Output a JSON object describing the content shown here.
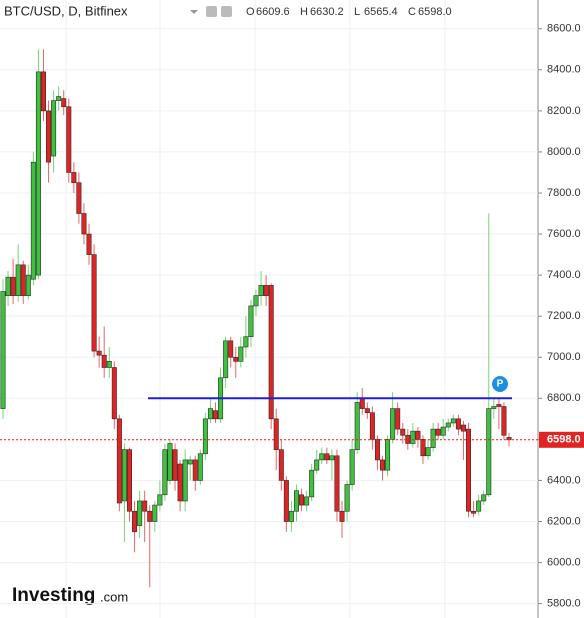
{
  "chart_data": {
    "type": "candlestick",
    "title": "BTC/USD, D, Bitfinex",
    "ohlc_labels": [
      "O",
      "H",
      "L",
      "C"
    ],
    "open": [
      6750,
      7300,
      7390,
      7300,
      7450,
      7300,
      7380,
      7400,
      8390,
      8200,
      7980,
      8250,
      8260,
      8220,
      7900,
      7850,
      7700,
      7600,
      7500,
      7030,
      7010,
      6950,
      6950,
      6700,
      6300,
      6550,
      6250,
      6180,
      6300,
      6250,
      6200,
      6280,
      6330,
      6400,
      6550,
      6480,
      6300,
      6480,
      6500,
      6400,
      6530,
      6700,
      6740,
      6700,
      6900,
      7080,
      7000,
      6980,
      7050,
      7100,
      7250,
      7300,
      7350,
      7350,
      6700,
      6550,
      6400,
      6200,
      6250,
      6330,
      6280,
      6320,
      6450,
      6500,
      6530,
      6500,
      6520,
      6250,
      6250,
      6380,
      6550,
      6800,
      6750,
      6730,
      6600,
      6500,
      6450,
      6600,
      6750,
      6650,
      6620,
      6580,
      6640,
      6600,
      6520,
      6560,
      6650,
      6620,
      6660,
      6680,
      6700,
      6670,
      6650,
      6250,
      6250,
      6300,
      6330,
      6750,
      6770,
      6760,
      6609.6
    ],
    "high": [
      7380,
      7420,
      7480,
      7550,
      7470,
      7450,
      8000,
      8500,
      8500,
      8250,
      8300,
      8320,
      8300,
      8260,
      7950,
      7900,
      7750,
      7650,
      7550,
      7100,
      7150,
      7050,
      6980,
      6720,
      6580,
      6560,
      6300,
      6350,
      6350,
      6280,
      6300,
      6400,
      6580,
      6600,
      6580,
      6500,
      6550,
      6520,
      6520,
      6550,
      6730,
      6800,
      6780,
      6950,
      7100,
      7100,
      7050,
      7100,
      7200,
      7280,
      7330,
      7420,
      7400,
      7360,
      6750,
      6600,
      6420,
      6300,
      6380,
      6360,
      6350,
      6480,
      6550,
      6560,
      6560,
      6550,
      6550,
      6300,
      6400,
      6600,
      6830,
      6850,
      6780,
      6760,
      6620,
      6520,
      6620,
      6830,
      6780,
      6680,
      6650,
      6680,
      6660,
      6620,
      6600,
      6680,
      6680,
      6700,
      6700,
      6720,
      6720,
      6690,
      6680,
      6300,
      6330,
      6350,
      7700,
      6800,
      6800,
      6780,
      6630.2
    ],
    "low": [
      6700,
      7250,
      7260,
      7270,
      7260,
      7280,
      7350,
      7380,
      8150,
      7850,
      7900,
      8200,
      8180,
      7850,
      7800,
      7650,
      7550,
      7450,
      7000,
      6950,
      6900,
      6900,
      6650,
      6250,
      6100,
      6200,
      6050,
      6120,
      6100,
      5880,
      6150,
      6250,
      6300,
      6380,
      6350,
      6250,
      6250,
      6400,
      6350,
      6380,
      6500,
      6680,
      6680,
      6680,
      6850,
      6950,
      6900,
      6950,
      7000,
      7050,
      7200,
      7250,
      7250,
      6650,
      6450,
      6350,
      6150,
      6150,
      6200,
      6250,
      6250,
      6300,
      6430,
      6480,
      6480,
      6400,
      6200,
      6120,
      6200,
      6350,
      6530,
      6720,
      6700,
      6550,
      6450,
      6400,
      6420,
      6580,
      6620,
      6580,
      6550,
      6560,
      6560,
      6480,
      6500,
      6540,
      6600,
      6600,
      6640,
      6660,
      6620,
      6500,
      6220,
      6220,
      6230,
      6280,
      6320,
      6700,
      6650,
      6600,
      6565.4
    ],
    "close": [
      7320,
      7390,
      7300,
      7450,
      7300,
      7400,
      7950,
      8390,
      8200,
      7950,
      8250,
      8270,
      8220,
      7900,
      7850,
      7700,
      7600,
      7500,
      7030,
      7010,
      6950,
      6980,
      6700,
      6290,
      6550,
      6250,
      6150,
      6300,
      6250,
      6200,
      6280,
      6330,
      6550,
      6580,
      6400,
      6300,
      6500,
      6500,
      6400,
      6530,
      6700,
      6750,
      6700,
      6900,
      7080,
      7000,
      6980,
      7050,
      7100,
      7250,
      7300,
      7350,
      7300,
      6700,
      6550,
      6400,
      6200,
      6250,
      6350,
      6280,
      6320,
      6450,
      6500,
      6530,
      6500,
      6520,
      6250,
      6200,
      6380,
      6550,
      6780,
      6750,
      6730,
      6600,
      6500,
      6450,
      6600,
      6750,
      6650,
      6620,
      6580,
      6640,
      6600,
      6520,
      6560,
      6650,
      6620,
      6660,
      6680,
      6700,
      6650,
      6640,
      6250,
      6240,
      6300,
      6330,
      6750,
      6760,
      6760,
      6620,
      6598
    ],
    "up_color": "#3ec23e",
    "down_color": "#e02424",
    "ylim": [
      5730,
      8740
    ],
    "yticks": [
      {
        "value": 5800,
        "label": "5800.0"
      },
      {
        "value": 6000,
        "label": "6000.0"
      },
      {
        "value": 6200,
        "label": "6200.0"
      },
      {
        "value": 6400,
        "label": "6400.0"
      },
      {
        "value": 6600,
        "label": "6600.0"
      },
      {
        "value": 6800,
        "label": "6800.0"
      },
      {
        "value": 7000,
        "label": "7000.0"
      },
      {
        "value": 7200,
        "label": "7200.0"
      },
      {
        "value": 7400,
        "label": "7400.0"
      },
      {
        "value": 7600,
        "label": "7600.0"
      },
      {
        "value": 7800,
        "label": "7800.0"
      },
      {
        "value": 8000,
        "label": "8000.0"
      },
      {
        "value": 8200,
        "label": "8200.0"
      },
      {
        "value": 8400,
        "label": "8400.0"
      },
      {
        "value": 8600,
        "label": "8600.0"
      }
    ],
    "last_price": {
      "value": 6598,
      "label": "6598.0"
    },
    "hline": 6800,
    "hline_color": "#1f1fe0",
    "marker_label": "P",
    "logo": "Investing",
    "logo_suffix": ".com"
  }
}
